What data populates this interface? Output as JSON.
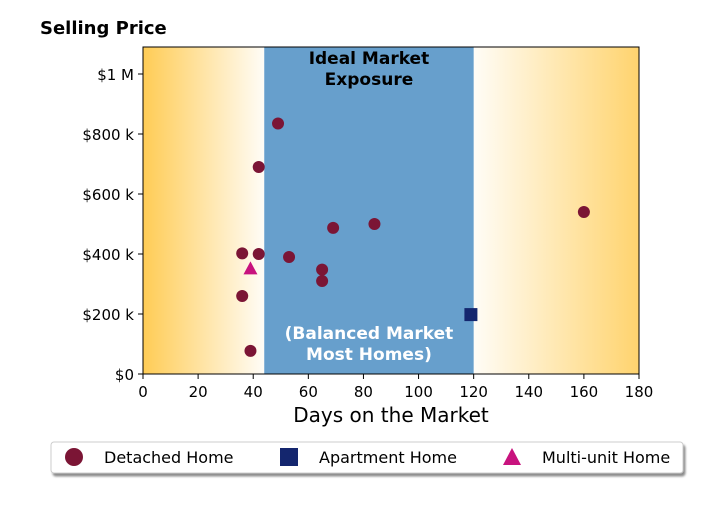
{
  "chart_data": {
    "type": "scatter",
    "ylabel": "Selling Price",
    "xlabel": "Days on the Market",
    "xlim": [
      0,
      180
    ],
    "ylim": [
      0,
      1090000
    ],
    "x_ticks": [
      0,
      20,
      40,
      60,
      80,
      100,
      120,
      140,
      160,
      180
    ],
    "x_tick_labels": [
      "0",
      "20",
      "40",
      "60",
      "80",
      "100",
      "120",
      "140",
      "160",
      "180"
    ],
    "y_ticks": [
      0,
      200000,
      400000,
      600000,
      800000,
      1000000
    ],
    "y_tick_labels": [
      "$0",
      "$200 k",
      "$400 k",
      "$600 k",
      "$800 k",
      "$1 M"
    ],
    "grid": false,
    "background_bands": [
      {
        "name": "left-gradient",
        "x_range": [
          0,
          44
        ],
        "color": "#ffcc55"
      },
      {
        "name": "ideal-band",
        "x_range": [
          44,
          120
        ],
        "color": "#679fcc"
      },
      {
        "name": "right-gradient",
        "x_range": [
          120,
          180
        ],
        "color": "#ffcc55"
      }
    ],
    "annotations": [
      {
        "text_lines": [
          "Ideal Market",
          "Exposure"
        ],
        "position": "top"
      },
      {
        "text_lines": [
          "(Balanced Market",
          "Most Homes)"
        ],
        "position": "bottom"
      }
    ],
    "series": [
      {
        "name": "Detached Home",
        "marker": "circle",
        "color": "#7b1535",
        "x": [
          49,
          42,
          36,
          42,
          53,
          65,
          65,
          69,
          84,
          36,
          39,
          160
        ],
        "y": [
          835000,
          690000,
          402000,
          400000,
          390000,
          348000,
          310000,
          487000,
          500000,
          260000,
          77000,
          540000
        ]
      },
      {
        "name": "Apartment Home",
        "marker": "square",
        "color": "#14266e",
        "x": [
          119
        ],
        "y": [
          198000
        ]
      },
      {
        "name": "Multi-unit Home",
        "marker": "triangle",
        "color": "#c8137e",
        "x": [
          39
        ],
        "y": [
          352000
        ]
      }
    ],
    "legend_position": "bottom"
  }
}
